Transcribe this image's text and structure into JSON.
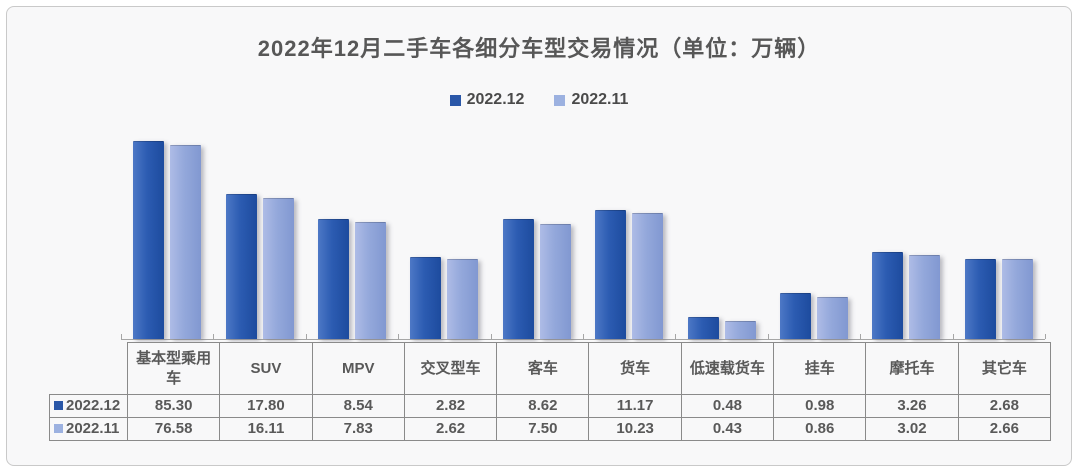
{
  "chart_data": {
    "type": "bar",
    "title": "2022年12月二手车各细分车型交易情况（单位：万辆）",
    "unit": "万辆",
    "categories": [
      "基本型乘用车",
      "SUV",
      "MPV",
      "交叉型车",
      "客车",
      "货车",
      "低速载货车",
      "挂车",
      "摩托车",
      "其它车"
    ],
    "series": [
      {
        "name": "2022.12",
        "color": "#2a57a8",
        "gradient": [
          "#4d78c6",
          "#2c5cb2",
          "#1d4b9e"
        ],
        "values": [
          85.3,
          17.8,
          8.54,
          2.82,
          8.62,
          11.17,
          0.48,
          0.98,
          3.26,
          2.68
        ]
      },
      {
        "name": "2022.11",
        "color": "#9cb1e0",
        "gradient": [
          "#aebce6",
          "#94a8db",
          "#8198d1"
        ],
        "values": [
          76.58,
          16.11,
          7.83,
          2.62,
          7.5,
          10.23,
          0.43,
          0.86,
          3.02,
          2.66
        ]
      }
    ],
    "axis": {
      "scale": "log",
      "min": 0.25,
      "max": 100,
      "gridlines": false
    },
    "legend_position": "top",
    "value_format": "0.00",
    "colors": {
      "card_background": "#f8f8f9",
      "card_border": "#c9c9c9",
      "table_border": "#8a8a8a",
      "text_gray": "#595959",
      "axis_line": "#a6a6a6"
    }
  }
}
